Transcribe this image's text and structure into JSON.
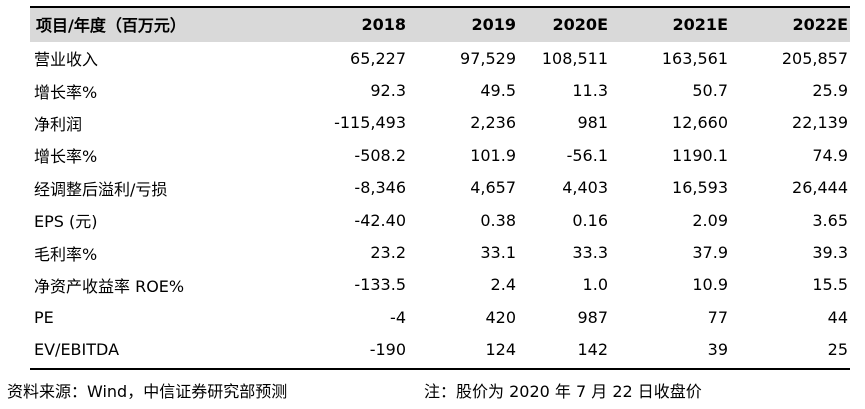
{
  "table": {
    "headers": [
      "项目/年度（百万元）",
      "2018",
      "2019",
      "2020E",
      "2021E",
      "2022E"
    ],
    "rows": [
      [
        "营业收入",
        "65,227",
        "97,529",
        "108,511",
        "163,561",
        "205,857"
      ],
      [
        "增长率%",
        "92.3",
        "49.5",
        "11.3",
        "50.7",
        "25.9"
      ],
      [
        "净利润",
        "-115,493",
        "2,236",
        "981",
        "12,660",
        "22,139"
      ],
      [
        "增长率%",
        "-508.2",
        "101.9",
        "-56.1",
        "1190.1",
        "74.9"
      ],
      [
        "经调整后溢利/亏损",
        "-8,346",
        "4,657",
        "4,403",
        "16,593",
        "26,444"
      ],
      [
        "EPS (元)",
        "-42.40",
        "0.38",
        "0.16",
        "2.09",
        "3.65"
      ],
      [
        "毛利率%",
        "23.2",
        "33.1",
        "33.3",
        "37.9",
        "39.3"
      ],
      [
        "净资产收益率 ROE%",
        "-133.5",
        "2.4",
        "1.0",
        "10.9",
        "15.5"
      ],
      [
        "PE",
        "-4",
        "420",
        "987",
        "77",
        "44"
      ],
      [
        "EV/EBITDA",
        "-190",
        "124",
        "142",
        "39",
        "25"
      ]
    ]
  },
  "footer": {
    "source": "资料来源：Wind，中信证券研究部预测",
    "note": "注：股价为 2020 年 7 月 22 日收盘价"
  }
}
